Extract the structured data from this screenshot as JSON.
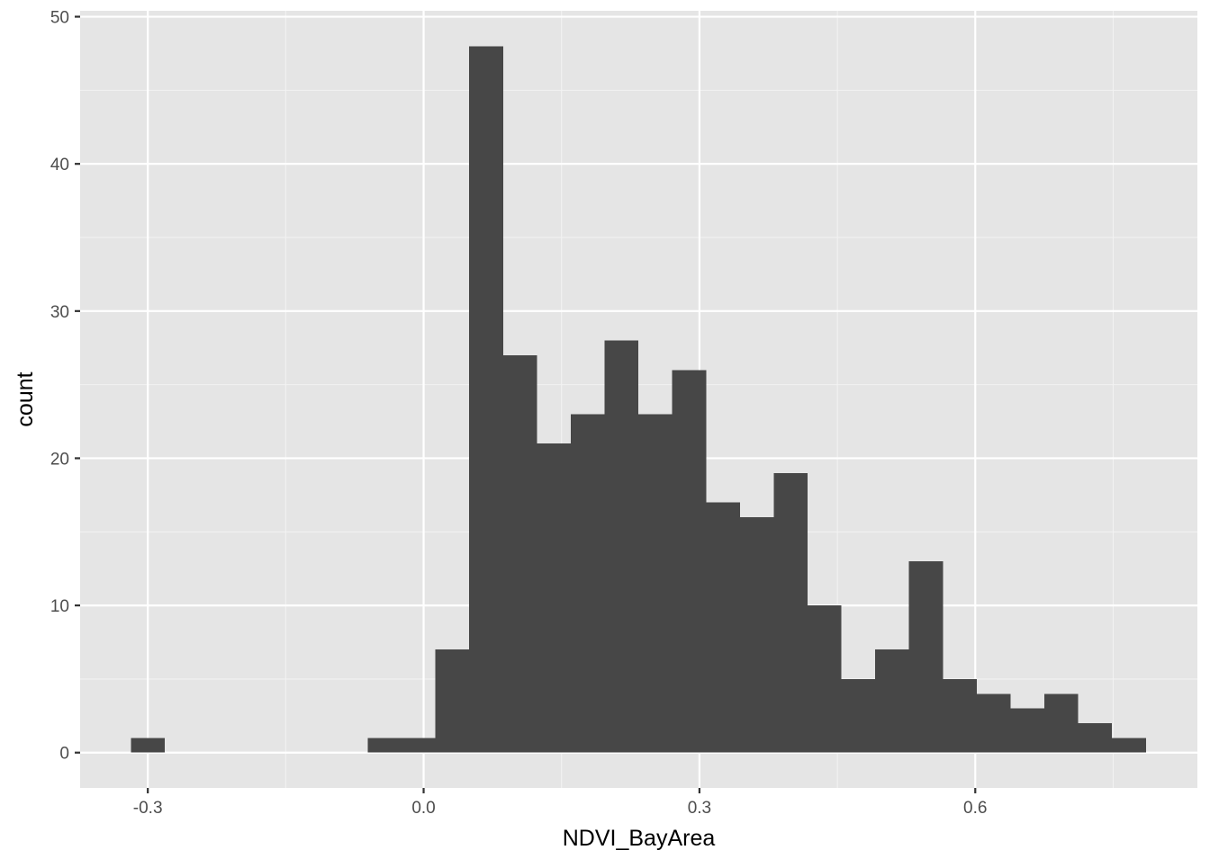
{
  "chart_data": {
    "type": "histogram",
    "title": "",
    "xlabel": "NDVI_BayArea",
    "ylabel": "count",
    "xlim": [
      -0.3736,
      0.8416
    ],
    "ylim": [
      -2.4,
      50.4
    ],
    "x_ticks": [
      -0.3,
      0.0,
      0.3,
      0.6
    ],
    "x_tick_labels": [
      "-0.3",
      "0.0",
      "0.3",
      "0.6"
    ],
    "x_minor_ticks": [
      -0.15,
      0.15,
      0.45,
      0.75
    ],
    "y_ticks": [
      0,
      10,
      20,
      30,
      40,
      50
    ],
    "y_tick_labels": [
      "0",
      "10",
      "20",
      "30",
      "40",
      "50"
    ],
    "y_minor_ticks": [
      5,
      15,
      25,
      35,
      45
    ],
    "bin_width": 0.0368,
    "bins": [
      {
        "xmin": -0.3184,
        "xmax": -0.2816,
        "count": 1
      },
      {
        "xmin": -0.2816,
        "xmax": -0.2448,
        "count": 0
      },
      {
        "xmin": -0.2448,
        "xmax": -0.208,
        "count": 0
      },
      {
        "xmin": -0.208,
        "xmax": -0.1712,
        "count": 0
      },
      {
        "xmin": -0.1712,
        "xmax": -0.1344,
        "count": 0
      },
      {
        "xmin": -0.1344,
        "xmax": -0.0976,
        "count": 0
      },
      {
        "xmin": -0.0976,
        "xmax": -0.0608,
        "count": 0
      },
      {
        "xmin": -0.0608,
        "xmax": -0.024,
        "count": 1
      },
      {
        "xmin": -0.024,
        "xmax": 0.0128,
        "count": 1
      },
      {
        "xmin": 0.0128,
        "xmax": 0.0496,
        "count": 7
      },
      {
        "xmin": 0.0496,
        "xmax": 0.0864,
        "count": 48
      },
      {
        "xmin": 0.0864,
        "xmax": 0.1232,
        "count": 27
      },
      {
        "xmin": 0.1232,
        "xmax": 0.16,
        "count": 21
      },
      {
        "xmin": 0.16,
        "xmax": 0.1968,
        "count": 23
      },
      {
        "xmin": 0.1968,
        "xmax": 0.2336,
        "count": 28
      },
      {
        "xmin": 0.2336,
        "xmax": 0.2704,
        "count": 23
      },
      {
        "xmin": 0.2704,
        "xmax": 0.3072,
        "count": 26
      },
      {
        "xmin": 0.3072,
        "xmax": 0.344,
        "count": 17
      },
      {
        "xmin": 0.344,
        "xmax": 0.3808,
        "count": 16
      },
      {
        "xmin": 0.3808,
        "xmax": 0.4176,
        "count": 19
      },
      {
        "xmin": 0.4176,
        "xmax": 0.4544,
        "count": 10
      },
      {
        "xmin": 0.4544,
        "xmax": 0.4912,
        "count": 5
      },
      {
        "xmin": 0.4912,
        "xmax": 0.528,
        "count": 7
      },
      {
        "xmin": 0.528,
        "xmax": 0.5648,
        "count": 13
      },
      {
        "xmin": 0.5648,
        "xmax": 0.6016,
        "count": 5
      },
      {
        "xmin": 0.6016,
        "xmax": 0.6384,
        "count": 4
      },
      {
        "xmin": 0.6384,
        "xmax": 0.6752,
        "count": 3
      },
      {
        "xmin": 0.6752,
        "xmax": 0.712,
        "count": 4
      },
      {
        "xmin": 0.712,
        "xmax": 0.7488,
        "count": 2
      },
      {
        "xmin": 0.7488,
        "xmax": 0.7856,
        "count": 1
      }
    ],
    "colors": {
      "panel_background": "#e5e5e5",
      "grid_major": "#ffffff",
      "grid_minor": "#f2f2f2",
      "bar_fill": "#474747",
      "tick_mark": "#333333",
      "tick_text": "#4d4d4d",
      "axis_title": "#000000"
    }
  }
}
